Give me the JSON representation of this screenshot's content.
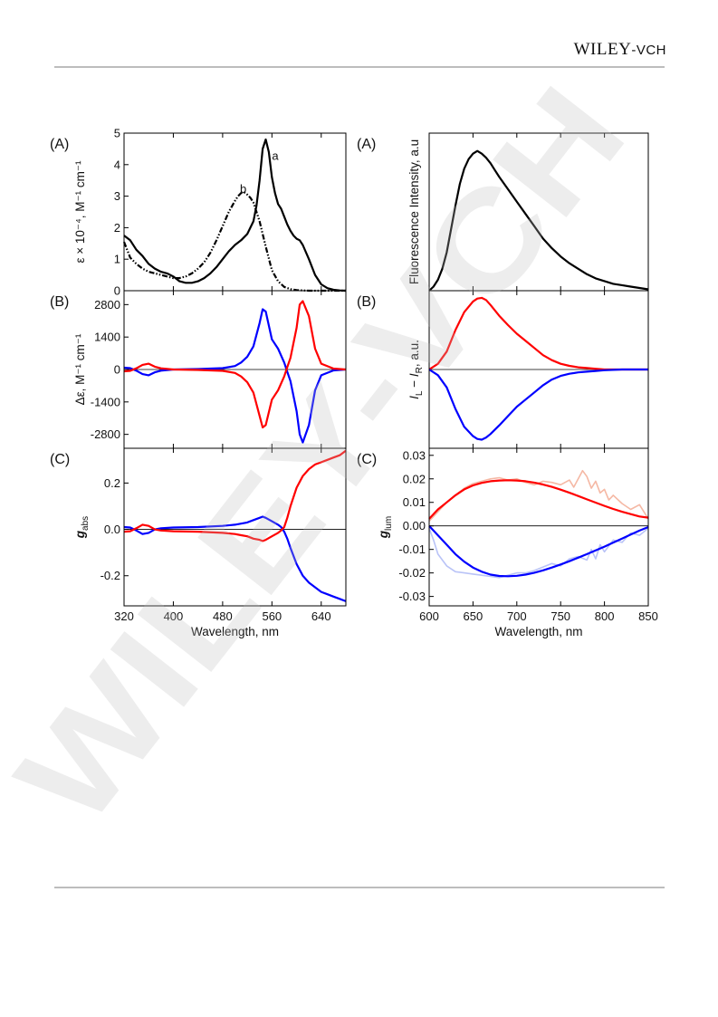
{
  "header": {
    "logo_main": "WILEY",
    "logo_suffix": "-VCH"
  },
  "watermark_text": "WILEY-VCH",
  "chart_data": [
    {
      "panel": "left-A",
      "type": "line",
      "label": "(A)",
      "ylabel": "ε × 10⁻⁴, M⁻¹ cm⁻¹",
      "xlim": [
        320,
        680
      ],
      "ylim": [
        0,
        5
      ],
      "yticks": [
        "0",
        "1",
        "2",
        "3",
        "4",
        "5"
      ],
      "series": [
        {
          "name": "a",
          "style": "solid",
          "x": [
            320,
            330,
            340,
            350,
            360,
            370,
            380,
            390,
            400,
            410,
            420,
            430,
            440,
            450,
            460,
            470,
            480,
            490,
            500,
            510,
            520,
            530,
            535,
            540,
            545,
            550,
            555,
            560,
            565,
            570,
            575,
            580,
            585,
            590,
            595,
            600,
            605,
            610,
            620,
            630,
            640,
            650,
            660,
            670,
            680
          ],
          "y": [
            1.75,
            1.6,
            1.3,
            1.1,
            0.85,
            0.7,
            0.6,
            0.55,
            0.45,
            0.3,
            0.25,
            0.25,
            0.3,
            0.4,
            0.55,
            0.75,
            1.0,
            1.25,
            1.45,
            1.6,
            1.8,
            2.2,
            2.7,
            3.5,
            4.5,
            4.8,
            4.4,
            3.6,
            3.1,
            2.75,
            2.6,
            2.35,
            2.1,
            1.9,
            1.75,
            1.65,
            1.6,
            1.45,
            1.0,
            0.5,
            0.2,
            0.08,
            0.03,
            0.01,
            0.0
          ]
        },
        {
          "name": "b",
          "style": "dash-dot",
          "x": [
            320,
            330,
            340,
            350,
            360,
            370,
            380,
            390,
            400,
            410,
            420,
            430,
            440,
            450,
            460,
            470,
            480,
            490,
            500,
            505,
            510,
            515,
            520,
            525,
            530,
            540,
            550,
            560,
            570,
            580,
            590,
            600,
            610,
            620,
            640,
            660,
            680
          ],
          "y": [
            1.55,
            1.05,
            0.85,
            0.7,
            0.6,
            0.55,
            0.5,
            0.45,
            0.4,
            0.4,
            0.45,
            0.55,
            0.7,
            0.9,
            1.2,
            1.6,
            2.05,
            2.5,
            2.85,
            3.0,
            3.1,
            3.12,
            3.05,
            2.95,
            2.8,
            2.2,
            1.4,
            0.65,
            0.3,
            0.12,
            0.05,
            0.02,
            0.01,
            0.0,
            0.0,
            0.0,
            0.0
          ]
        }
      ],
      "annotations": [
        "a",
        "b"
      ]
    },
    {
      "panel": "left-B",
      "type": "line",
      "label": "(B)",
      "ylabel": "Δε, M⁻¹ cm⁻¹",
      "xlim": [
        320,
        680
      ],
      "ylim": [
        -3400,
        3400
      ],
      "yticks": [
        "2800",
        "1400",
        "0",
        "-1400",
        "-2800"
      ],
      "ytick_values": [
        2800,
        1400,
        0,
        -1400,
        -2800
      ],
      "series": [
        {
          "color": "#0000ff",
          "x": [
            320,
            330,
            340,
            350,
            360,
            370,
            380,
            400,
            440,
            480,
            500,
            510,
            520,
            530,
            540,
            545,
            550,
            560,
            570,
            580,
            585,
            590,
            600,
            605,
            610,
            620,
            630,
            640,
            660,
            680
          ],
          "y": [
            80,
            60,
            -50,
            -200,
            -250,
            -120,
            -50,
            0,
            20,
            60,
            150,
            300,
            550,
            1000,
            2000,
            2600,
            2500,
            1300,
            900,
            300,
            -100,
            -500,
            -1800,
            -2800,
            -3150,
            -2400,
            -900,
            -250,
            -40,
            0
          ]
        },
        {
          "color": "#ff0000",
          "x": [
            320,
            330,
            340,
            350,
            360,
            370,
            380,
            400,
            440,
            480,
            500,
            510,
            520,
            530,
            540,
            545,
            550,
            560,
            570,
            580,
            585,
            590,
            600,
            605,
            610,
            620,
            630,
            640,
            660,
            680
          ],
          "y": [
            -80,
            -60,
            50,
            200,
            250,
            120,
            50,
            0,
            -20,
            -60,
            -150,
            -300,
            -550,
            -1000,
            -2000,
            -2500,
            -2400,
            -1300,
            -900,
            -300,
            100,
            500,
            1800,
            2800,
            2950,
            2300,
            900,
            250,
            40,
            0
          ]
        }
      ]
    },
    {
      "panel": "left-C",
      "type": "line",
      "label": "(C)",
      "ylabel": "g_abs",
      "ylabel_main": "g",
      "ylabel_sub": "abs",
      "xlabel": "Wavelength, nm",
      "xlim": [
        320,
        680
      ],
      "ylim": [
        -0.33,
        0.35
      ],
      "xticks": [
        "320",
        "400",
        "480",
        "560",
        "640"
      ],
      "xtick_values": [
        320,
        400,
        480,
        560,
        640
      ],
      "yticks": [
        "0.2",
        "0.0",
        "-0.2"
      ],
      "ytick_values": [
        0.2,
        0.0,
        -0.2
      ],
      "series": [
        {
          "color": "#0000ff",
          "x": [
            320,
            330,
            340,
            350,
            360,
            370,
            380,
            400,
            440,
            480,
            500,
            510,
            520,
            530,
            540,
            545,
            550,
            560,
            570,
            575,
            580,
            585,
            590,
            600,
            610,
            620,
            630,
            640,
            650,
            660,
            670,
            680
          ],
          "y": [
            0.01,
            0.008,
            -0.005,
            -0.02,
            -0.015,
            0.0,
            0.005,
            0.008,
            0.01,
            0.015,
            0.02,
            0.025,
            0.03,
            0.04,
            0.05,
            0.055,
            0.05,
            0.035,
            0.02,
            0.01,
            -0.01,
            -0.04,
            -0.08,
            -0.15,
            -0.2,
            -0.23,
            -0.25,
            -0.27,
            -0.28,
            -0.29,
            -0.3,
            -0.31
          ]
        },
        {
          "color": "#ff0000",
          "x": [
            320,
            330,
            340,
            350,
            360,
            370,
            380,
            400,
            440,
            480,
            500,
            510,
            520,
            530,
            540,
            545,
            550,
            560,
            570,
            575,
            580,
            585,
            590,
            600,
            610,
            620,
            630,
            640,
            650,
            660,
            670,
            680
          ],
          "y": [
            -0.01,
            -0.008,
            0.005,
            0.02,
            0.015,
            0.0,
            -0.005,
            -0.008,
            -0.01,
            -0.015,
            -0.02,
            -0.025,
            -0.03,
            -0.04,
            -0.045,
            -0.05,
            -0.045,
            -0.03,
            -0.015,
            -0.005,
            0.01,
            0.05,
            0.1,
            0.18,
            0.23,
            0.26,
            0.28,
            0.29,
            0.3,
            0.31,
            0.32,
            0.34
          ]
        }
      ]
    },
    {
      "panel": "right-A",
      "type": "line",
      "label": "(A)",
      "ylabel": "Fluorescence Intensity, a.u",
      "xlim": [
        600,
        850
      ],
      "ylim": [
        0,
        1.15
      ],
      "series": [
        {
          "color": "#000000",
          "x": [
            600,
            605,
            610,
            615,
            620,
            625,
            630,
            635,
            640,
            645,
            650,
            655,
            660,
            665,
            670,
            675,
            680,
            690,
            700,
            710,
            720,
            730,
            740,
            750,
            760,
            770,
            780,
            790,
            800,
            810,
            820,
            830,
            840,
            850
          ],
          "y": [
            0.0,
            0.03,
            0.08,
            0.16,
            0.28,
            0.45,
            0.62,
            0.78,
            0.89,
            0.96,
            1.0,
            1.02,
            1.0,
            0.97,
            0.93,
            0.88,
            0.83,
            0.74,
            0.65,
            0.56,
            0.47,
            0.38,
            0.31,
            0.25,
            0.2,
            0.16,
            0.12,
            0.09,
            0.07,
            0.05,
            0.04,
            0.03,
            0.02,
            0.01
          ]
        }
      ]
    },
    {
      "panel": "right-B",
      "type": "line",
      "label": "(B)",
      "ylabel": "I_L − I_R, a.u.",
      "ylabel_parts": [
        "I",
        "L",
        " − ",
        "I",
        "R",
        ", a.u."
      ],
      "xlim": [
        600,
        850
      ],
      "ylim": [
        -1.1,
        1.1
      ],
      "series": [
        {
          "color": "#ff0000",
          "x": [
            600,
            610,
            620,
            630,
            640,
            650,
            655,
            660,
            665,
            670,
            680,
            690,
            700,
            710,
            720,
            730,
            740,
            750,
            760,
            770,
            780,
            790,
            800,
            820,
            850
          ],
          "y": [
            0.0,
            0.08,
            0.25,
            0.55,
            0.8,
            0.95,
            0.99,
            1.0,
            0.97,
            0.9,
            0.75,
            0.62,
            0.5,
            0.4,
            0.3,
            0.2,
            0.13,
            0.08,
            0.05,
            0.03,
            0.02,
            0.01,
            0.0,
            0.0,
            0.0
          ]
        },
        {
          "color": "#0000ff",
          "x": [
            600,
            610,
            620,
            630,
            640,
            650,
            655,
            660,
            665,
            670,
            680,
            690,
            700,
            710,
            720,
            730,
            740,
            750,
            760,
            770,
            780,
            790,
            800,
            820,
            850
          ],
          "y": [
            0.0,
            -0.08,
            -0.25,
            -0.55,
            -0.8,
            -0.93,
            -0.97,
            -0.98,
            -0.95,
            -0.9,
            -0.78,
            -0.65,
            -0.52,
            -0.42,
            -0.32,
            -0.22,
            -0.14,
            -0.09,
            -0.06,
            -0.04,
            -0.03,
            -0.02,
            -0.01,
            0.0,
            0.0
          ]
        }
      ]
    },
    {
      "panel": "right-C",
      "type": "line",
      "label": "(C)",
      "ylabel": "g_lum",
      "ylabel_main": "g",
      "ylabel_sub": "lum",
      "xlabel": "Wavelength, nm",
      "xlim": [
        600,
        850
      ],
      "ylim": [
        -0.034,
        0.033
      ],
      "xticks": [
        "600",
        "650",
        "700",
        "750",
        "800",
        "850"
      ],
      "xtick_values": [
        600,
        650,
        700,
        750,
        800,
        850
      ],
      "yticks": [
        "0.03",
        "0.02",
        "0.01",
        "0.00",
        "-0.01",
        "-0.02",
        "-0.03"
      ],
      "ytick_values": [
        0.03,
        0.02,
        0.01,
        0.0,
        -0.01,
        -0.02,
        -0.03
      ],
      "series": [
        {
          "name": "fit-red",
          "color": "#ff0000",
          "x": [
            600,
            610,
            620,
            630,
            640,
            650,
            660,
            670,
            680,
            690,
            700,
            710,
            720,
            730,
            740,
            750,
            760,
            770,
            780,
            790,
            800,
            810,
            820,
            830,
            840,
            850
          ],
          "y": [
            0.003,
            0.007,
            0.01,
            0.013,
            0.0155,
            0.0172,
            0.0183,
            0.019,
            0.0193,
            0.0194,
            0.0193,
            0.019,
            0.0184,
            0.0176,
            0.0166,
            0.0154,
            0.0141,
            0.0127,
            0.0113,
            0.0099,
            0.0085,
            0.0072,
            0.006,
            0.005,
            0.004,
            0.0035
          ]
        },
        {
          "name": "fit-blue",
          "color": "#0000ff",
          "x": [
            600,
            610,
            620,
            630,
            640,
            650,
            660,
            670,
            680,
            690,
            700,
            710,
            720,
            730,
            740,
            750,
            760,
            770,
            780,
            790,
            800,
            810,
            820,
            830,
            840,
            850
          ],
          "y": [
            0.0,
            -0.004,
            -0.008,
            -0.012,
            -0.0152,
            -0.0177,
            -0.0195,
            -0.0207,
            -0.0213,
            -0.0214,
            -0.0212,
            -0.0207,
            -0.0199,
            -0.0189,
            -0.0177,
            -0.0164,
            -0.015,
            -0.0135,
            -0.012,
            -0.0104,
            -0.0088,
            -0.0071,
            -0.0054,
            -0.0037,
            -0.002,
            -0.0005
          ]
        },
        {
          "name": "raw-red",
          "color": "#f5b8a4",
          "x": [
            600,
            610,
            620,
            630,
            640,
            650,
            660,
            670,
            680,
            690,
            700,
            710,
            720,
            730,
            740,
            750,
            760,
            765,
            770,
            775,
            780,
            785,
            790,
            795,
            800,
            805,
            810,
            820,
            830,
            840,
            850
          ],
          "y": [
            0.002,
            0.006,
            0.01,
            0.013,
            0.016,
            0.018,
            0.019,
            0.02,
            0.0205,
            0.0195,
            0.02,
            0.0185,
            0.0175,
            0.019,
            0.0185,
            0.0175,
            0.0195,
            0.0165,
            0.02,
            0.0235,
            0.021,
            0.016,
            0.019,
            0.014,
            0.0155,
            0.011,
            0.013,
            0.0095,
            0.007,
            0.009,
            0.003
          ]
        },
        {
          "name": "raw-blue",
          "color": "#b9c3f7",
          "x": [
            600,
            605,
            610,
            620,
            630,
            640,
            650,
            660,
            670,
            680,
            690,
            700,
            710,
            720,
            730,
            740,
            750,
            760,
            770,
            780,
            785,
            790,
            795,
            800,
            810,
            820,
            830,
            840,
            850
          ],
          "y": [
            -0.001,
            -0.006,
            -0.012,
            -0.017,
            -0.0195,
            -0.02,
            -0.0205,
            -0.021,
            -0.0215,
            -0.022,
            -0.021,
            -0.02,
            -0.02,
            -0.019,
            -0.0175,
            -0.016,
            -0.017,
            -0.014,
            -0.013,
            -0.0145,
            -0.01,
            -0.014,
            -0.008,
            -0.011,
            -0.006,
            -0.007,
            -0.003,
            -0.004,
            -0.001
          ]
        }
      ]
    }
  ]
}
